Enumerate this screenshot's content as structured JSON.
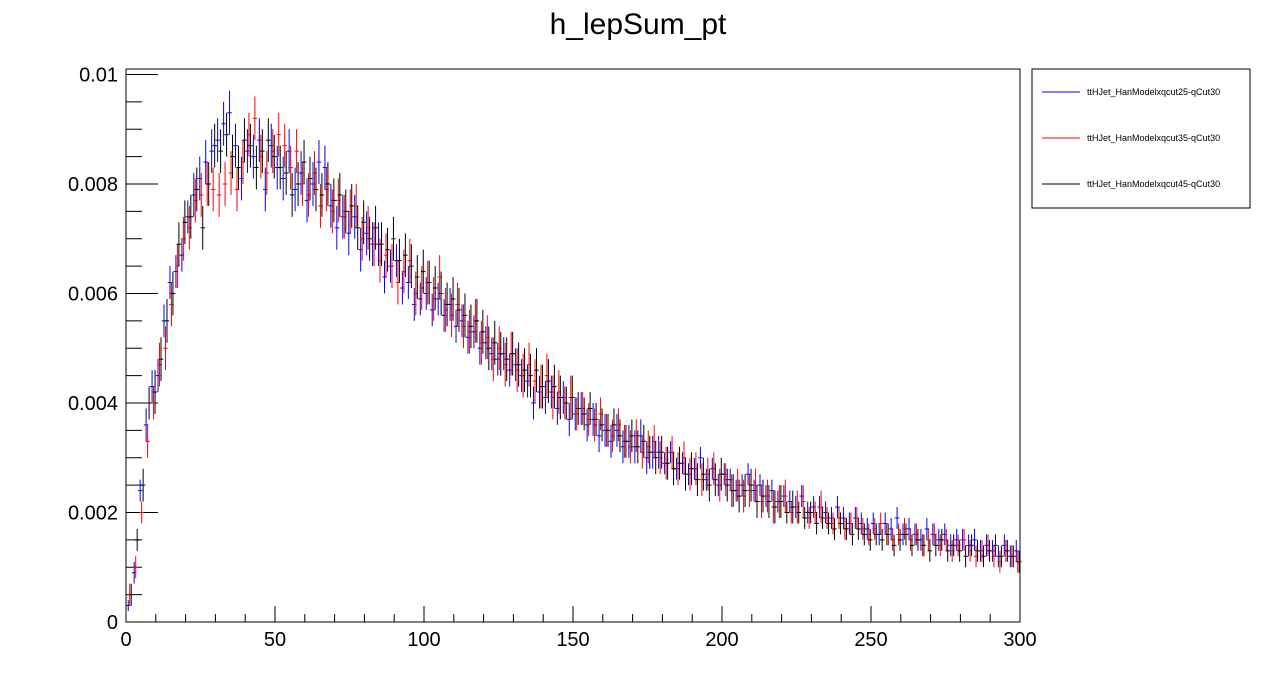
{
  "chart_data": {
    "type": "scatter",
    "title": "h_lepSum_pt",
    "xlabel": "",
    "ylabel": "",
    "xlim": [
      0,
      300
    ],
    "ylim": [
      0,
      0.0101
    ],
    "x_ticks": [
      0,
      50,
      100,
      150,
      200,
      250,
      300
    ],
    "x_tick_labels": [
      "0",
      "50",
      "100",
      "150",
      "200",
      "250",
      "300"
    ],
    "y_ticks": [
      0,
      0.002,
      0.004,
      0.006,
      0.008,
      0.01
    ],
    "y_tick_labels": [
      "0",
      "0.002",
      "0.004",
      "0.006",
      "0.008",
      "0.01"
    ],
    "legend_position": "top-right",
    "grid": false,
    "bin_width": 1.5,
    "series": [
      {
        "name": "ttHJet_HanModelxqcut25-qCut30",
        "color": "#0000ff",
        "x": [
          0.75,
          2.75,
          4.75,
          6.75,
          8.75,
          10.75,
          12.75,
          14.75,
          16.75,
          18.75,
          20.75,
          22.75,
          24.75,
          26.75,
          28.75,
          30.75,
          32.75,
          34.75,
          36.75,
          38.75,
          40.75,
          42.75,
          44.75,
          46.75,
          48.75,
          50.75,
          52.75,
          54.75,
          56.75,
          58.75,
          60.75,
          62.75,
          64.75,
          66.75,
          68.75,
          70.75,
          72.75,
          74.75,
          76.75,
          78.75,
          80.75,
          82.75,
          84.75,
          86.75,
          88.75,
          90.75,
          92.75,
          94.75,
          96.75,
          98.75,
          100.75,
          102.75,
          104.75,
          106.75,
          108.75,
          110.75,
          112.75,
          114.75,
          116.75,
          118.75,
          120.75,
          122.75,
          124.75,
          126.75,
          128.75,
          130.75,
          132.75,
          134.75,
          136.75,
          138.75,
          140.75,
          142.75,
          144.75,
          146.75,
          148.75,
          150.75,
          152.75,
          154.75,
          156.75,
          158.75,
          160.75,
          162.75,
          164.75,
          166.75,
          168.75,
          170.75,
          172.75,
          174.75,
          176.75,
          178.75,
          180.75,
          182.75,
          184.75,
          186.75,
          188.75,
          190.75,
          192.75,
          194.75,
          196.75,
          198.75,
          200.75,
          202.75,
          204.75,
          206.75,
          208.75,
          210.75,
          212.75,
          214.75,
          216.75,
          218.75,
          220.75,
          222.75,
          224.75,
          226.75,
          228.75,
          230.75,
          232.75,
          234.75,
          236.75,
          238.75,
          240.75,
          242.75,
          244.75,
          246.75,
          248.75,
          250.75,
          252.75,
          254.75,
          256.75,
          258.75,
          260.75,
          262.75,
          264.75,
          266.75,
          268.75,
          270.75,
          272.75,
          274.75,
          276.75,
          278.75,
          280.75,
          282.75,
          284.75,
          286.75,
          288.75,
          290.75,
          292.75,
          294.75,
          296.75,
          298.75
        ],
        "y": [
          0.0003,
          0.0009,
          0.0024,
          0.0036,
          0.0043,
          0.0045,
          0.0055,
          0.0062,
          0.0064,
          0.0067,
          0.0074,
          0.0078,
          0.0081,
          0.0084,
          0.0086,
          0.0088,
          0.0091,
          0.0093,
          0.0087,
          0.0081,
          0.0086,
          0.0085,
          0.0088,
          0.0079,
          0.0087,
          0.0083,
          0.0081,
          0.0086,
          0.0079,
          0.0082,
          0.0077,
          0.008,
          0.0084,
          0.0083,
          0.0076,
          0.0072,
          0.0074,
          0.0071,
          0.0074,
          0.0068,
          0.0071,
          0.0069,
          0.0069,
          0.0063,
          0.0065,
          0.0066,
          0.0061,
          0.0062,
          0.0058,
          0.0059,
          0.006,
          0.0057,
          0.0059,
          0.0056,
          0.0058,
          0.0054,
          0.0055,
          0.0052,
          0.0053,
          0.005,
          0.0051,
          0.0049,
          0.0048,
          0.0049,
          0.0046,
          0.0047,
          0.0045,
          0.0044,
          0.004,
          0.0042,
          0.0041,
          0.0042,
          0.0039,
          0.0041,
          0.0037,
          0.0038,
          0.0039,
          0.0036,
          0.0037,
          0.0034,
          0.0035,
          0.0033,
          0.0035,
          0.0032,
          0.0033,
          0.0032,
          0.0034,
          0.003,
          0.0031,
          0.0031,
          0.0029,
          0.0031,
          0.0028,
          0.0029,
          0.0027,
          0.0028,
          0.003,
          0.0026,
          0.0028,
          0.0025,
          0.0027,
          0.0026,
          0.0024,
          0.0025,
          0.0027,
          0.0024,
          0.0025,
          0.0023,
          0.0024,
          0.0022,
          0.0023,
          0.0022,
          0.0021,
          0.0023,
          0.002,
          0.0021,
          0.0021,
          0.002,
          0.0019,
          0.0021,
          0.0019,
          0.0018,
          0.0019,
          0.0018,
          0.0017,
          0.0018,
          0.0016,
          0.0018,
          0.0017,
          0.0019,
          0.0016,
          0.0017,
          0.0016,
          0.0015,
          0.0017,
          0.0016,
          0.0015,
          0.0016,
          0.0014,
          0.0015,
          0.0015,
          0.0014,
          0.0015,
          0.0013,
          0.0014,
          0.0013,
          0.0012,
          0.0014,
          0.0012,
          0.0013
        ],
        "err": [
          0.0001,
          0.0002,
          0.0002,
          0.0003,
          0.0003,
          0.0003,
          0.0003,
          0.0003,
          0.0003,
          0.0003,
          0.0003,
          0.0004,
          0.0004,
          0.0004,
          0.0004,
          0.0004,
          0.0004,
          0.0004,
          0.0004,
          0.0004,
          0.0004,
          0.0004,
          0.0004,
          0.0004,
          0.0004,
          0.0004,
          0.0004,
          0.0004,
          0.0004,
          0.0004,
          0.0004,
          0.0004,
          0.0004,
          0.0004,
          0.0004,
          0.0004,
          0.0004,
          0.0004,
          0.0004,
          0.0004,
          0.0004,
          0.0004,
          0.0004,
          0.0003,
          0.0003,
          0.0003,
          0.0003,
          0.0003,
          0.0003,
          0.0003,
          0.0003,
          0.0003,
          0.0003,
          0.0003,
          0.0003,
          0.0003,
          0.0003,
          0.0003,
          0.0003,
          0.0003,
          0.0003,
          0.0003,
          0.0003,
          0.0003,
          0.0003,
          0.0003,
          0.0003,
          0.0003,
          0.0003,
          0.0003,
          0.0003,
          0.0003,
          0.0003,
          0.0003,
          0.0003,
          0.0003,
          0.0003,
          0.0003,
          0.0003,
          0.0003,
          0.0003,
          0.0003,
          0.0003,
          0.0003,
          0.0003,
          0.0003,
          0.0003,
          0.0003,
          0.0003,
          0.0003,
          0.0002,
          0.0002,
          0.0002,
          0.0002,
          0.0002,
          0.0002,
          0.0002,
          0.0002,
          0.0002,
          0.0002,
          0.0002,
          0.0002,
          0.0002,
          0.0002,
          0.0002,
          0.0002,
          0.0002,
          0.0002,
          0.0002,
          0.0002,
          0.0002,
          0.0002,
          0.0002,
          0.0002,
          0.0002,
          0.0002,
          0.0002,
          0.0002,
          0.0002,
          0.0002,
          0.0002,
          0.0002,
          0.0002,
          0.0002,
          0.0002,
          0.0002,
          0.0002,
          0.0002,
          0.0002,
          0.0002,
          0.0002,
          0.0002,
          0.0002,
          0.0002,
          0.0002,
          0.0002,
          0.0002,
          0.0002,
          0.0002,
          0.0002,
          0.0002,
          0.0002,
          0.0002,
          0.0002,
          0.0002,
          0.0002,
          0.0002,
          0.0002,
          0.0002,
          0.0002
        ]
      },
      {
        "name": "ttHJet_HanModelxqcut35-qCut30",
        "color": "#ff0000",
        "x": [
          1.25,
          3.25,
          5.25,
          7.25,
          9.25,
          11.25,
          13.25,
          15.25,
          17.25,
          19.25,
          21.25,
          23.25,
          25.25,
          27.25,
          29.25,
          31.25,
          33.25,
          35.25,
          37.25,
          39.25,
          41.25,
          43.25,
          45.25,
          47.25,
          49.25,
          51.25,
          53.25,
          55.25,
          57.25,
          59.25,
          61.25,
          63.25,
          65.25,
          67.25,
          69.25,
          71.25,
          73.25,
          75.25,
          77.25,
          79.25,
          81.25,
          83.25,
          85.25,
          87.25,
          89.25,
          91.25,
          93.25,
          95.25,
          97.25,
          99.25,
          101.25,
          103.25,
          105.25,
          107.25,
          109.25,
          111.25,
          113.25,
          115.25,
          117.25,
          119.25,
          121.25,
          123.25,
          125.25,
          127.25,
          129.25,
          131.25,
          133.25,
          135.25,
          137.25,
          139.25,
          141.25,
          143.25,
          145.25,
          147.25,
          149.25,
          151.25,
          153.25,
          155.25,
          157.25,
          159.25,
          161.25,
          163.25,
          165.25,
          167.25,
          169.25,
          171.25,
          173.25,
          175.25,
          177.25,
          179.25,
          181.25,
          183.25,
          185.25,
          187.25,
          189.25,
          191.25,
          193.25,
          195.25,
          197.25,
          199.25,
          201.25,
          203.25,
          205.25,
          207.25,
          209.25,
          211.25,
          213.25,
          215.25,
          217.25,
          219.25,
          221.25,
          223.25,
          225.25,
          227.25,
          229.25,
          231.25,
          233.25,
          235.25,
          237.25,
          239.25,
          241.25,
          243.25,
          245.25,
          247.25,
          249.25,
          251.25,
          253.25,
          255.25,
          257.25,
          259.25,
          261.25,
          263.25,
          265.25,
          267.25,
          269.25,
          271.25,
          273.25,
          275.25,
          277.25,
          279.25,
          281.25,
          283.25,
          285.25,
          287.25,
          289.25,
          291.25,
          293.25,
          295.25,
          297.25,
          299.25
        ],
        "y": [
          0.0005,
          0.001,
          0.002,
          0.0033,
          0.004,
          0.0047,
          0.005,
          0.0058,
          0.0065,
          0.007,
          0.0072,
          0.0077,
          0.0078,
          0.008,
          0.0079,
          0.0078,
          0.008,
          0.0082,
          0.0079,
          0.0084,
          0.0089,
          0.0092,
          0.0085,
          0.0082,
          0.0086,
          0.0089,
          0.0087,
          0.0083,
          0.0086,
          0.008,
          0.0078,
          0.0082,
          0.0076,
          0.0079,
          0.0075,
          0.0077,
          0.0074,
          0.0075,
          0.0076,
          0.007,
          0.0072,
          0.0069,
          0.0066,
          0.0067,
          0.0065,
          0.0062,
          0.0064,
          0.0066,
          0.006,
          0.0061,
          0.0062,
          0.0059,
          0.0063,
          0.0057,
          0.0056,
          0.0058,
          0.0054,
          0.0053,
          0.0055,
          0.0051,
          0.0052,
          0.0048,
          0.005,
          0.0047,
          0.0049,
          0.0046,
          0.0045,
          0.0047,
          0.0044,
          0.0043,
          0.0045,
          0.0041,
          0.0042,
          0.004,
          0.0041,
          0.0038,
          0.0039,
          0.0037,
          0.0036,
          0.0038,
          0.0035,
          0.0034,
          0.0036,
          0.0033,
          0.0032,
          0.0034,
          0.0031,
          0.0032,
          0.0033,
          0.003,
          0.0029,
          0.0031,
          0.0028,
          0.003,
          0.0027,
          0.0028,
          0.0026,
          0.0027,
          0.0028,
          0.0025,
          0.0026,
          0.0024,
          0.0025,
          0.0023,
          0.0024,
          0.0025,
          0.0022,
          0.0023,
          0.0021,
          0.0022,
          0.0023,
          0.002,
          0.0021,
          0.0022,
          0.0019,
          0.002,
          0.0021,
          0.0019,
          0.0018,
          0.0019,
          0.0017,
          0.0018,
          0.0019,
          0.0017,
          0.0016,
          0.0017,
          0.0018,
          0.0016,
          0.0015,
          0.0016,
          0.0017,
          0.0015,
          0.0016,
          0.0014,
          0.0015,
          0.0016,
          0.0014,
          0.0015,
          0.0013,
          0.0014,
          0.0015,
          0.0013,
          0.0012,
          0.0013,
          0.0014,
          0.0012,
          0.0011,
          0.0013,
          0.0012,
          0.0011
        ]
      },
      {
        "name": "ttHJet_HanModelxqcut45-qCut30",
        "color": "#000000",
        "x": [
          1.75,
          3.75,
          5.75,
          7.75,
          9.75,
          11.75,
          13.75,
          15.75,
          17.75,
          19.75,
          21.75,
          23.75,
          25.75,
          27.75,
          29.75,
          31.75,
          33.75,
          35.75,
          37.75,
          39.75,
          41.75,
          43.75,
          45.75,
          47.75,
          49.75,
          51.75,
          53.75,
          55.75,
          57.75,
          59.75,
          61.75,
          63.75,
          65.75,
          67.75,
          69.75,
          71.75,
          73.75,
          75.75,
          77.75,
          79.75,
          81.75,
          83.75,
          85.75,
          87.75,
          89.75,
          91.75,
          93.75,
          95.75,
          97.75,
          99.75,
          101.75,
          103.75,
          105.75,
          107.75,
          109.75,
          111.75,
          113.75,
          115.75,
          117.75,
          119.75,
          121.75,
          123.75,
          125.75,
          127.75,
          129.75,
          131.75,
          133.75,
          135.75,
          137.75,
          139.75,
          141.75,
          143.75,
          145.75,
          147.75,
          149.75,
          151.75,
          153.75,
          155.75,
          157.75,
          159.75,
          161.75,
          163.75,
          165.75,
          167.75,
          169.75,
          171.75,
          173.75,
          175.75,
          177.75,
          179.75,
          181.75,
          183.75,
          185.75,
          187.75,
          189.75,
          191.75,
          193.75,
          195.75,
          197.75,
          199.75,
          201.75,
          203.75,
          205.75,
          207.75,
          209.75,
          211.75,
          213.75,
          215.75,
          217.75,
          219.75,
          221.75,
          223.75,
          225.75,
          227.75,
          229.75,
          231.75,
          233.75,
          235.75,
          237.75,
          239.75,
          241.75,
          243.75,
          245.75,
          247.75,
          249.75,
          251.75,
          253.75,
          255.75,
          257.75,
          259.75,
          261.75,
          263.75,
          265.75,
          267.75,
          269.75,
          271.75,
          273.75,
          275.75,
          277.75,
          279.75,
          281.75,
          283.75,
          285.75,
          287.75,
          289.75,
          291.75,
          293.75,
          295.75,
          297.75,
          299.75
        ],
        "y": [
          0.0005,
          0.0015,
          0.0025,
          0.004,
          0.0042,
          0.0048,
          0.0055,
          0.006,
          0.0069,
          0.0073,
          0.0074,
          0.0079,
          0.0072,
          0.008,
          0.0087,
          0.0086,
          0.0089,
          0.0085,
          0.0083,
          0.0088,
          0.0087,
          0.0083,
          0.0086,
          0.0088,
          0.0085,
          0.0083,
          0.0082,
          0.0078,
          0.008,
          0.0084,
          0.0081,
          0.0079,
          0.0078,
          0.008,
          0.0077,
          0.0078,
          0.0075,
          0.0076,
          0.0072,
          0.0073,
          0.007,
          0.0072,
          0.0069,
          0.0068,
          0.007,
          0.0066,
          0.0067,
          0.0065,
          0.0063,
          0.0064,
          0.0062,
          0.0061,
          0.006,
          0.0058,
          0.0059,
          0.0057,
          0.0056,
          0.0054,
          0.0055,
          0.0053,
          0.005,
          0.0051,
          0.0049,
          0.0048,
          0.0049,
          0.0047,
          0.0046,
          0.0045,
          0.0046,
          0.0043,
          0.0044,
          0.0043,
          0.0041,
          0.004,
          0.0041,
          0.0039,
          0.0038,
          0.0039,
          0.0037,
          0.0036,
          0.0035,
          0.0036,
          0.0034,
          0.0033,
          0.0034,
          0.0032,
          0.0033,
          0.0031,
          0.003,
          0.0031,
          0.0029,
          0.0028,
          0.0029,
          0.0027,
          0.0028,
          0.0026,
          0.0027,
          0.0025,
          0.0026,
          0.0027,
          0.0025,
          0.0024,
          0.0023,
          0.0024,
          0.0025,
          0.0022,
          0.0023,
          0.0022,
          0.0021,
          0.0022,
          0.002,
          0.0021,
          0.002,
          0.0019,
          0.002,
          0.0018,
          0.0019,
          0.0018,
          0.0017,
          0.0018,
          0.0017,
          0.0016,
          0.0017,
          0.0016,
          0.0015,
          0.0016,
          0.0015,
          0.0016,
          0.0014,
          0.0015,
          0.0016,
          0.0014,
          0.0015,
          0.0014,
          0.0013,
          0.0014,
          0.0015,
          0.0013,
          0.0014,
          0.0013,
          0.0012,
          0.0014,
          0.0013,
          0.0012,
          0.0013,
          0.0014,
          0.0012,
          0.0013,
          0.0012,
          0.0011
        ]
      }
    ]
  }
}
